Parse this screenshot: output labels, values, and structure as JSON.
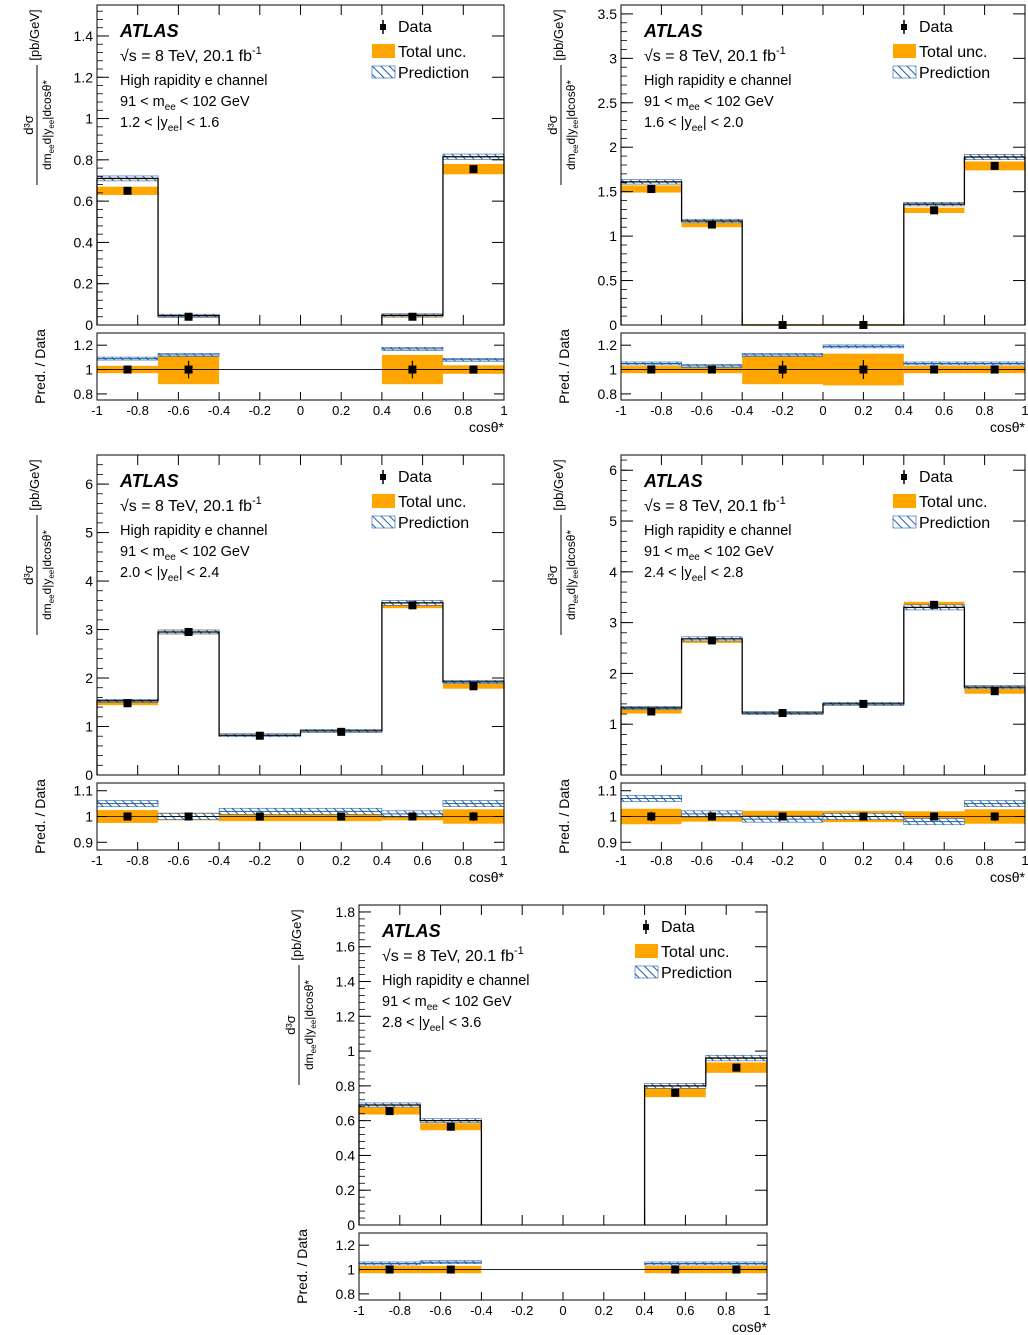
{
  "colors": {
    "data": "#000000",
    "total_unc": "#ffa500",
    "prediction_edge": "#1f5fa6",
    "prediction_hatch": "#1f5fa6",
    "frame": "#000000"
  },
  "legend": {
    "data": "Data",
    "total_unc": "Total unc.",
    "prediction": "Prediction"
  },
  "text": {
    "atlas": "ATLAS",
    "energy": "√s = 8 TeV, 20.1 fb",
    "energy_sup": "-1",
    "channel": "High rapidity e channel",
    "mass_pre": "91 < m",
    "mass_sub": "ee",
    "mass_post": " < 102 GeV",
    "ylabel_num": "d³σ",
    "ylabel_den_pre": "dm",
    "ylabel_den_sub1": "ee",
    "ylabel_den_mid": "d|y",
    "ylabel_den_sub2": "ee",
    "ylabel_den_post": "|dcosθ*",
    "ylabel_unit": "[pb/GeV]",
    "ratio_label": "Pred. / Data",
    "xlabel": "cosθ*",
    "x_ticks": [
      "-1",
      "-0.8",
      "-0.6",
      "-0.4",
      "-0.2",
      "0",
      "0.2",
      "0.4",
      "0.6",
      "0.8",
      "1"
    ]
  },
  "chart_data": [
    {
      "type": "bar",
      "rapidity_pre": "1.2 < |y",
      "rapidity_sub": "ee",
      "rapidity_post": "| < 1.6",
      "bin_edges": [
        -1,
        -0.7,
        -0.4,
        0,
        0.4,
        0.7,
        1
      ],
      "data": [
        0.65,
        0.04,
        null,
        null,
        0.04,
        0.755
      ],
      "total_unc": [
        0.02,
        0.005,
        null,
        null,
        0.005,
        0.025
      ],
      "prediction": [
        0.71,
        0.045,
        null,
        null,
        0.047,
        0.815
      ],
      "prediction_unc": [
        0.012,
        0.002,
        null,
        null,
        0.002,
        0.013
      ],
      "ylim": [
        0,
        1.55
      ],
      "yticks": [
        "0",
        "0.2",
        "0.4",
        "0.6",
        "0.8",
        "1",
        "1.2",
        "1.4"
      ],
      "ytick_values": [
        0,
        0.2,
        0.4,
        0.6,
        0.8,
        1,
        1.2,
        1.4
      ],
      "ratio": [
        1.09,
        1.12,
        null,
        null,
        1.17,
        1.08
      ],
      "ratio_unc": [
        0.03,
        0.12,
        null,
        null,
        0.12,
        0.035
      ],
      "ratio_ylim": [
        0.75,
        1.3
      ],
      "ratio_yticks": [
        "0.8",
        "1",
        "1.2"
      ],
      "ratio_ytick_values": [
        0.8,
        1,
        1.2
      ]
    },
    {
      "type": "bar",
      "rapidity_pre": "1.6 < |y",
      "rapidity_sub": "ee",
      "rapidity_post": "| < 2.0",
      "bin_edges": [
        -1,
        -0.7,
        -0.4,
        0,
        0.4,
        0.7,
        1
      ],
      "data": [
        1.53,
        1.13,
        0.0,
        0.0,
        1.29,
        1.79
      ],
      "total_unc": [
        0.04,
        0.03,
        0.003,
        0.003,
        0.03,
        0.05
      ],
      "prediction": [
        1.61,
        1.17,
        0.0,
        0.0,
        1.36,
        1.89
      ],
      "prediction_unc": [
        0.025,
        0.02,
        0.001,
        0.001,
        0.02,
        0.03
      ],
      "ylim": [
        0,
        3.6
      ],
      "yticks": [
        "0",
        "0.5",
        "1",
        "1.5",
        "2",
        "2.5",
        "3",
        "3.5"
      ],
      "ytick_values": [
        0,
        0.5,
        1,
        1.5,
        2,
        2.5,
        3,
        3.5
      ],
      "ratio": [
        1.05,
        1.03,
        1.12,
        1.19,
        1.05,
        1.05
      ],
      "ratio_unc": [
        0.03,
        0.03,
        0.12,
        0.13,
        0.03,
        0.03
      ],
      "ratio_ylim": [
        0.75,
        1.3
      ],
      "ratio_yticks": [
        "0.8",
        "1",
        "1.2"
      ],
      "ratio_ytick_values": [
        0.8,
        1,
        1.2
      ]
    },
    {
      "type": "bar",
      "rapidity_pre": "2.0 < |y",
      "rapidity_sub": "ee",
      "rapidity_post": "| < 2.4",
      "bin_edges": [
        -1,
        -0.7,
        -0.4,
        0,
        0.4,
        0.7,
        1
      ],
      "data": [
        1.48,
        2.95,
        0.81,
        0.89,
        3.5,
        1.83
      ],
      "total_unc": [
        0.04,
        0.05,
        0.015,
        0.015,
        0.06,
        0.05
      ],
      "prediction": [
        1.53,
        2.95,
        0.82,
        0.91,
        3.55,
        1.92
      ],
      "prediction_unc": [
        0.03,
        0.04,
        0.012,
        0.013,
        0.05,
        0.03
      ],
      "ylim": [
        0,
        6.6
      ],
      "yticks": [
        "0",
        "1",
        "2",
        "3",
        "4",
        "5",
        "6"
      ],
      "ytick_values": [
        0,
        1,
        2,
        3,
        4,
        5,
        6
      ],
      "ratio": [
        1.05,
        1.0,
        1.02,
        1.02,
        1.01,
        1.05
      ],
      "ratio_unc": [
        0.025,
        0.015,
        0.018,
        0.018,
        0.015,
        0.028
      ],
      "ratio_ylim": [
        0.87,
        1.13
      ],
      "ratio_yticks": [
        "0.9",
        "1",
        "1.1"
      ],
      "ratio_ytick_values": [
        0.9,
        1,
        1.1
      ]
    },
    {
      "type": "bar",
      "rapidity_pre": "2.4 < |y",
      "rapidity_sub": "ee",
      "rapidity_post": "| < 2.8",
      "bin_edges": [
        -1,
        -0.7,
        -0.4,
        0,
        0.4,
        0.7,
        1
      ],
      "data": [
        1.25,
        2.65,
        1.22,
        1.4,
        3.35,
        1.65
      ],
      "total_unc": [
        0.04,
        0.05,
        0.03,
        0.03,
        0.06,
        0.05
      ],
      "prediction": [
        1.32,
        2.68,
        1.22,
        1.4,
        3.3,
        1.73
      ],
      "prediction_unc": [
        0.025,
        0.04,
        0.02,
        0.02,
        0.05,
        0.03
      ],
      "ylim": [
        0,
        6.3
      ],
      "yticks": [
        "0",
        "1",
        "2",
        "3",
        "4",
        "5",
        "6"
      ],
      "ytick_values": [
        0,
        1,
        2,
        3,
        4,
        5,
        6
      ],
      "ratio": [
        1.07,
        1.01,
        0.99,
        1.0,
        0.98,
        1.05
      ],
      "ratio_unc": [
        0.03,
        0.02,
        0.022,
        0.022,
        0.02,
        0.028
      ],
      "ratio_ylim": [
        0.87,
        1.13
      ],
      "ratio_yticks": [
        "0.9",
        "1",
        "1.1"
      ],
      "ratio_ytick_values": [
        0.9,
        1,
        1.1
      ]
    },
    {
      "type": "bar",
      "rapidity_pre": "2.8 < |y",
      "rapidity_sub": "ee",
      "rapidity_post": "| < 3.6",
      "bin_edges": [
        -1,
        -0.7,
        -0.4,
        0,
        0.4,
        0.7,
        1
      ],
      "data": [
        0.655,
        0.565,
        null,
        null,
        0.76,
        0.905
      ],
      "total_unc": [
        0.02,
        0.02,
        null,
        null,
        0.025,
        0.03
      ],
      "prediction": [
        0.69,
        0.6,
        null,
        null,
        0.8,
        0.96
      ],
      "prediction_unc": [
        0.012,
        0.011,
        null,
        null,
        0.014,
        0.016
      ],
      "ylim": [
        0,
        1.84
      ],
      "yticks": [
        "0",
        "0.2",
        "0.4",
        "0.6",
        "0.8",
        "1",
        "1.2",
        "1.4",
        "1.6",
        "1.8"
      ],
      "ytick_values": [
        0,
        0.2,
        0.4,
        0.6,
        0.8,
        1,
        1.2,
        1.4,
        1.6,
        1.8
      ],
      "ratio": [
        1.05,
        1.06,
        null,
        null,
        1.05,
        1.05
      ],
      "ratio_unc": [
        0.03,
        0.03,
        null,
        null,
        0.03,
        0.03
      ],
      "ratio_ylim": [
        0.75,
        1.3
      ],
      "ratio_yticks": [
        "0.8",
        "1",
        "1.2"
      ],
      "ratio_ytick_values": [
        0.8,
        1,
        1.2
      ]
    }
  ]
}
